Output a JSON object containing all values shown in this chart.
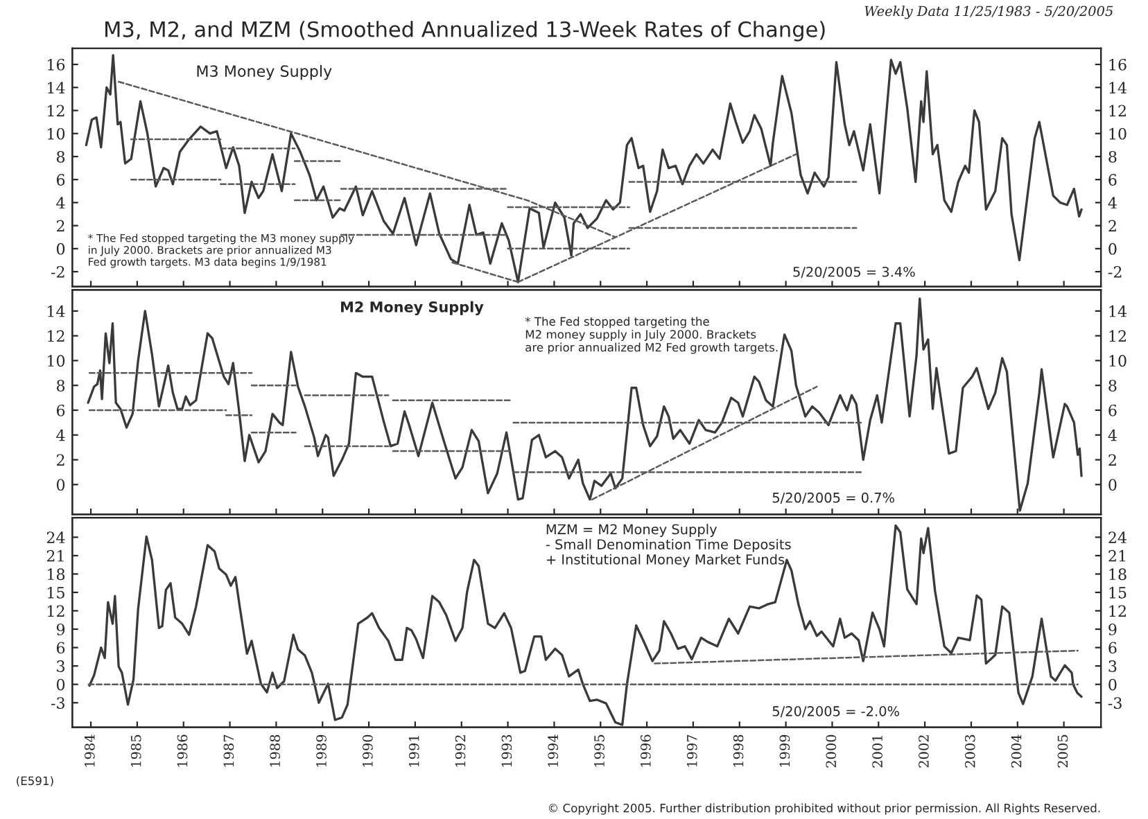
{
  "chart_data": [
    {
      "type": "line",
      "title": "M3, M2, and MZM (Smoothed Annualized 13-Week Rates of Change)",
      "subtitle": "Weekly Data 11/25/1983 - 5/20/2005",
      "annotations": [
        "M3 Money Supply",
        "* The Fed stopped targeting the M3 money supply\nin July 2000. Brackets are prior annualized M3\nFed growth targets. M3 data begins 1/9/1981",
        "5/20/2005 = 3.4%"
      ],
      "xlim": [
        1983.6,
        2005.8
      ],
      "xticks": [
        1984,
        1985,
        1986,
        1987,
        1988,
        1989,
        1990,
        1991,
        1992,
        1993,
        1994,
        1995,
        1996,
        1997,
        1998,
        1999,
        2000,
        2001,
        2002,
        2003,
        2004,
        2005
      ],
      "ylim": [
        -3.3,
        17.4
      ],
      "yticks": [
        -2,
        0,
        2,
        4,
        6,
        8,
        10,
        12,
        14,
        16
      ],
      "y2lim": [
        -3.3,
        17.4
      ],
      "y2ticks": [
        -2,
        0,
        2,
        4,
        6,
        8,
        10,
        12,
        14,
        16
      ],
      "tick_labels": "y",
      "series": [
        {
          "color": "#3a3a3a",
          "x": [
            1983.9,
            1984.02,
            1984.12,
            1984.22,
            1984.34,
            1984.42,
            1984.48,
            1984.58,
            1984.64,
            1984.74,
            1984.87,
            1985.07,
            1985.22,
            1985.4,
            1985.57,
            1985.67,
            1985.77,
            1985.92,
            1986.12,
            1986.37,
            1986.57,
            1986.72,
            1986.92,
            1987.07,
            1987.2,
            1987.32,
            1987.47,
            1987.62,
            1987.72,
            1987.92,
            1988.12,
            1988.32,
            1988.52,
            1988.72,
            1988.87,
            1989.02,
            1989.22,
            1989.37,
            1989.47,
            1989.72,
            1989.87,
            1990.07,
            1990.32,
            1990.52,
            1990.77,
            1991.02,
            1991.32,
            1991.52,
            1991.77,
            1991.92,
            1992.17,
            1992.32,
            1992.47,
            1992.62,
            1992.87,
            1993.02,
            1993.22,
            1993.47,
            1993.67,
            1993.77,
            1994.02,
            1994.22,
            1994.37,
            1994.42,
            1994.57,
            1994.72,
            1994.92,
            1995.12,
            1995.27,
            1995.42,
            1995.57,
            1995.67,
            1995.82,
            1995.92,
            1996.07,
            1996.22,
            1996.34,
            1996.47,
            1996.62,
            1996.77,
            1996.92,
            1997.07,
            1997.22,
            1997.42,
            1997.57,
            1997.8,
            1997.92,
            1998.07,
            1998.22,
            1998.32,
            1998.47,
            1998.67,
            1998.72,
            1998.92,
            1999.12,
            1999.32,
            1999.47,
            1999.62,
            1999.82,
            1999.92,
            2000.09,
            2000.27,
            2000.37,
            2000.47,
            2000.67,
            2000.82,
            2001.02,
            2001.27,
            2001.37,
            2001.47,
            2001.62,
            2001.8,
            2001.92,
            2001.97,
            2002.04,
            2002.17,
            2002.27,
            2002.42,
            2002.57,
            2002.72,
            2002.87,
            2002.95,
            2003.07,
            2003.17,
            2003.32,
            2003.52,
            2003.67,
            2003.77,
            2003.87,
            2004.04,
            2004.37,
            2004.47,
            2004.77,
            2004.92,
            2005.07,
            2005.22,
            2005.33,
            2005.38
          ],
          "values": [
            9.0,
            11.2,
            11.4,
            8.8,
            14.0,
            13.4,
            16.8,
            10.8,
            11.0,
            7.4,
            7.8,
            12.8,
            10.0,
            5.4,
            7.0,
            6.8,
            5.6,
            8.4,
            9.5,
            10.6,
            10.0,
            10.2,
            7.0,
            8.8,
            7.2,
            3.1,
            5.8,
            4.4,
            5.0,
            8.2,
            5.0,
            10.0,
            8.4,
            6.4,
            4.2,
            5.4,
            2.7,
            3.5,
            3.3,
            5.4,
            2.9,
            5.0,
            2.4,
            1.3,
            4.4,
            0.3,
            4.8,
            1.3,
            -0.9,
            -1.3,
            3.8,
            1.2,
            1.4,
            -1.3,
            2.2,
            0.7,
            -2.9,
            3.5,
            3.1,
            0.1,
            4.0,
            2.7,
            -0.6,
            2.2,
            3.0,
            1.8,
            2.6,
            4.2,
            3.4,
            4.0,
            9.0,
            9.6,
            7.0,
            7.2,
            3.2,
            5.0,
            8.6,
            7.0,
            7.2,
            5.6,
            7.2,
            8.2,
            7.4,
            8.6,
            7.8,
            12.6,
            11.0,
            9.2,
            10.2,
            11.6,
            10.4,
            7.2,
            9.2,
            15.0,
            11.8,
            6.4,
            4.8,
            6.6,
            5.4,
            6.2,
            16.2,
            10.8,
            9.0,
            10.2,
            6.8,
            10.8,
            4.8,
            16.4,
            15.2,
            16.2,
            12.2,
            5.8,
            12.8,
            11.0,
            15.4,
            8.2,
            9.0,
            4.2,
            3.2,
            5.8,
            7.2,
            6.6,
            12.0,
            11.0,
            3.4,
            5.0,
            9.6,
            9.0,
            3.0,
            -1.0,
            9.6,
            11.0,
            4.6,
            4.0,
            3.8,
            5.2,
            2.8,
            3.4
          ]
        },
        {
          "color": "#5a5a5a",
          "line_style": "dashed",
          "x": [
            1984.6,
            1993.42,
            1995.32
          ],
          "values": [
            14.5,
            4.2,
            1.0
          ]
        },
        {
          "color": "#5a5a5a",
          "line_style": "dashed",
          "x": [
            1991.8,
            1993.22
          ],
          "values": [
            -1.2,
            -2.9
          ]
        },
        {
          "color": "#5a5a5a",
          "line_style": "dashed",
          "x": [
            1993.22,
            1999.22
          ],
          "values": [
            -2.9,
            8.2
          ]
        },
        {
          "color": "#5a5a5a",
          "line_style": "dashed",
          "x": [
            1984.87,
            1986.8
          ],
          "values": [
            9.5,
            9.5
          ]
        },
        {
          "color": "#5a5a5a",
          "line_style": "dashed",
          "x": [
            1984.87,
            1986.8
          ],
          "values": [
            6.0,
            6.0
          ]
        },
        {
          "color": "#5a5a5a",
          "line_style": "dashed",
          "x": [
            1986.8,
            1988.4
          ],
          "values": [
            8.7,
            8.7
          ]
        },
        {
          "color": "#5a5a5a",
          "line_style": "dashed",
          "x": [
            1986.8,
            1988.4
          ],
          "values": [
            5.6,
            5.6
          ]
        },
        {
          "color": "#5a5a5a",
          "line_style": "dashed",
          "x": [
            1988.4,
            1989.4
          ],
          "values": [
            7.6,
            7.6
          ]
        },
        {
          "color": "#5a5a5a",
          "line_style": "dashed",
          "x": [
            1988.4,
            1989.4
          ],
          "values": [
            4.2,
            4.2
          ]
        },
        {
          "color": "#5a5a5a",
          "line_style": "dashed",
          "x": [
            1989.4,
            1993.0
          ],
          "values": [
            5.2,
            5.2
          ]
        },
        {
          "color": "#5a5a5a",
          "line_style": "dashed",
          "x": [
            1989.4,
            1993.0
          ],
          "values": [
            1.2,
            1.2
          ]
        },
        {
          "color": "#5a5a5a",
          "line_style": "dashed",
          "x": [
            1993.0,
            1995.62
          ],
          "values": [
            3.6,
            3.6
          ]
        },
        {
          "color": "#5a5a5a",
          "line_style": "dashed",
          "x": [
            1993.0,
            1995.62
          ],
          "values": [
            0.0,
            0.0
          ]
        },
        {
          "color": "#5a5a5a",
          "line_style": "dashed",
          "x": [
            1995.62,
            2000.52
          ],
          "values": [
            5.8,
            5.8
          ]
        },
        {
          "color": "#5a5a5a",
          "line_style": "dashed",
          "x": [
            1995.62,
            2000.52
          ],
          "values": [
            1.8,
            1.8
          ]
        }
      ]
    },
    {
      "type": "line",
      "annotations": [
        "M2 Money Supply",
        "* The Fed stopped targeting the\nM2 money supply in July 2000. Brackets\nare prior annualized M2 Fed growth targets.",
        "5/20/2005 = 0.7%"
      ],
      "xlim": [
        1983.6,
        2005.8
      ],
      "xticks": [
        1984,
        1985,
        1986,
        1987,
        1988,
        1989,
        1990,
        1991,
        1992,
        1993,
        1994,
        1995,
        1996,
        1997,
        1998,
        1999,
        2000,
        2001,
        2002,
        2003,
        2004,
        2005
      ],
      "ylim": [
        -2.4,
        15.7
      ],
      "yticks": [
        0,
        2,
        4,
        6,
        8,
        10,
        12,
        14
      ],
      "y2lim": [
        -2.4,
        15.7
      ],
      "y2ticks": [
        0,
        2,
        4,
        6,
        8,
        10,
        12,
        14
      ],
      "tick_labels": "y",
      "series": [
        {
          "color": "#3a3a3a",
          "x": [
            1983.94,
            1984.07,
            1984.14,
            1984.2,
            1984.24,
            1984.32,
            1984.4,
            1984.47,
            1984.54,
            1984.64,
            1984.77,
            1984.9,
            1985.02,
            1985.17,
            1985.32,
            1985.47,
            1985.67,
            1985.77,
            1985.87,
            1985.97,
            1986.05,
            1986.14,
            1986.27,
            1986.52,
            1986.62,
            1986.87,
            1986.97,
            1987.07,
            1987.2,
            1987.32,
            1987.42,
            1987.62,
            1987.77,
            1987.92,
            1988.07,
            1988.14,
            1988.32,
            1988.47,
            1988.62,
            1988.82,
            1988.9,
            1989.07,
            1989.12,
            1989.24,
            1989.42,
            1989.57,
            1989.72,
            1989.87,
            1990.07,
            1990.32,
            1990.47,
            1990.62,
            1990.77,
            1990.87,
            1991.07,
            1991.37,
            1991.62,
            1991.87,
            1992.02,
            1992.22,
            1992.37,
            1992.57,
            1992.77,
            1992.97,
            1993.22,
            1993.32,
            1993.52,
            1993.67,
            1993.82,
            1994.02,
            1994.17,
            1994.32,
            1994.52,
            1994.62,
            1994.77,
            1994.87,
            1995.02,
            1995.22,
            1995.32,
            1995.47,
            1995.67,
            1995.77,
            1995.92,
            1996.07,
            1996.22,
            1996.37,
            1996.47,
            1996.57,
            1996.72,
            1996.92,
            1997.12,
            1997.27,
            1997.47,
            1997.62,
            1997.82,
            1997.97,
            1998.07,
            1998.32,
            1998.42,
            1998.57,
            1998.72,
            1998.97,
            1999.12,
            1999.22,
            1999.42,
            1999.57,
            1999.72,
            1999.92,
            2000.17,
            2000.32,
            2000.42,
            2000.52,
            2000.67,
            2000.82,
            2000.97,
            2001.07,
            2001.37,
            2001.47,
            2001.67,
            2001.82,
            2001.89,
            2001.97,
            2002.07,
            2002.17,
            2002.25,
            2002.52,
            2002.67,
            2002.82,
            2003.02,
            2003.12,
            2003.37,
            2003.52,
            2003.67,
            2003.77,
            2004.05,
            2004.22,
            2004.47,
            2004.52,
            2004.77,
            2005.02,
            2005.07,
            2005.22,
            2005.3,
            2005.34,
            2005.38
          ],
          "values": [
            6.6,
            7.9,
            8.1,
            9.2,
            6.9,
            12.2,
            9.8,
            13.0,
            6.6,
            6.1,
            4.6,
            5.7,
            10.0,
            14.0,
            10.5,
            6.3,
            9.6,
            7.4,
            6.1,
            6.1,
            7.1,
            6.4,
            6.8,
            12.2,
            11.8,
            8.7,
            8.1,
            9.8,
            5.9,
            1.9,
            4.0,
            1.8,
            2.7,
            5.7,
            5.0,
            4.8,
            10.7,
            7.9,
            6.3,
            3.8,
            2.3,
            4.0,
            3.8,
            0.7,
            2.0,
            3.3,
            9.0,
            8.7,
            8.7,
            5.1,
            3.1,
            3.3,
            5.9,
            4.8,
            2.3,
            6.6,
            3.5,
            0.5,
            1.4,
            4.4,
            3.5,
            -0.7,
            0.9,
            4.2,
            -1.2,
            -1.1,
            3.6,
            4.0,
            2.2,
            2.7,
            2.2,
            0.5,
            2.0,
            0.1,
            -1.2,
            0.3,
            -0.1,
            0.9,
            -0.3,
            0.5,
            7.8,
            7.8,
            4.8,
            3.1,
            3.9,
            6.3,
            5.5,
            3.7,
            4.4,
            3.3,
            5.2,
            4.4,
            4.2,
            5.0,
            7.0,
            6.6,
            5.5,
            8.7,
            8.3,
            6.8,
            6.3,
            12.1,
            10.8,
            8.0,
            5.5,
            6.3,
            5.8,
            4.8,
            7.2,
            6.0,
            7.2,
            6.5,
            2.0,
            5.2,
            7.2,
            5.0,
            13.0,
            13.0,
            5.5,
            10.4,
            15.0,
            10.9,
            11.7,
            6.1,
            9.4,
            2.5,
            2.7,
            7.8,
            8.7,
            9.4,
            6.1,
            7.4,
            10.2,
            9.1,
            -2.1,
            0.1,
            7.4,
            9.3,
            2.2,
            6.5,
            6.3,
            5.0,
            2.4,
            2.9,
            0.7
          ]
        },
        {
          "color": "#5a5a5a",
          "line_style": "dashed",
          "x": [
            1983.97,
            1987.47
          ],
          "values": [
            9.0,
            9.0
          ]
        },
        {
          "color": "#5a5a5a",
          "line_style": "dashed",
          "x": [
            1983.97,
            1986.92
          ],
          "values": [
            6.0,
            6.0
          ]
        },
        {
          "color": "#5a5a5a",
          "line_style": "dashed",
          "x": [
            1986.92,
            1987.47
          ],
          "values": [
            5.6,
            5.6
          ]
        },
        {
          "color": "#5a5a5a",
          "line_style": "dashed",
          "x": [
            1987.47,
            1988.42
          ],
          "values": [
            8.0,
            8.0
          ]
        },
        {
          "color": "#5a5a5a",
          "line_style": "dashed",
          "x": [
            1987.47,
            1988.42
          ],
          "values": [
            4.2,
            4.2
          ]
        },
        {
          "color": "#5a5a5a",
          "line_style": "dashed",
          "x": [
            1988.62,
            1990.42
          ],
          "values": [
            7.2,
            7.2
          ]
        },
        {
          "color": "#5a5a5a",
          "line_style": "dashed",
          "x": [
            1988.62,
            1990.42
          ],
          "values": [
            3.1,
            3.1
          ]
        },
        {
          "color": "#5a5a5a",
          "line_style": "dashed",
          "x": [
            1990.52,
            1993.07
          ],
          "values": [
            6.8,
            6.8
          ]
        },
        {
          "color": "#5a5a5a",
          "line_style": "dashed",
          "x": [
            1990.52,
            1993.07
          ],
          "values": [
            2.7,
            2.7
          ]
        },
        {
          "color": "#5a5a5a",
          "line_style": "dashed",
          "x": [
            1993.12,
            2000.62
          ],
          "values": [
            5.0,
            5.0
          ]
        },
        {
          "color": "#5a5a5a",
          "line_style": "dashed",
          "x": [
            1993.12,
            2000.62
          ],
          "values": [
            1.0,
            1.0
          ]
        },
        {
          "color": "#5a5a5a",
          "line_style": "dashed",
          "x": [
            1994.82,
            1999.67
          ],
          "values": [
            -1.2,
            7.9
          ]
        }
      ]
    },
    {
      "type": "line",
      "annotations": [
        "MZM = M2 Money Supply\n- Small Denomination Time Deposits\n+ Institutional Money Market Funds",
        "5/20/2005 = -2.0%",
        "(E591)",
        "© Copyright 2005. Further distribution prohibited without prior permission. All Rights Reserved."
      ],
      "xlim": [
        1983.6,
        2005.8
      ],
      "xticks": [
        1984,
        1985,
        1986,
        1987,
        1988,
        1989,
        1990,
        1991,
        1992,
        1993,
        1994,
        1995,
        1996,
        1997,
        1998,
        1999,
        2000,
        2001,
        2002,
        2003,
        2004,
        2005
      ],
      "ylim": [
        -7.0,
        27.2
      ],
      "yticks": [
        -3,
        0,
        3,
        6,
        9,
        12,
        15,
        18,
        21,
        24
      ],
      "y2lim": [
        -7.0,
        27.2
      ],
      "y2ticks": [
        -3,
        0,
        3,
        6,
        9,
        12,
        15,
        18,
        21,
        24
      ],
      "series": [
        {
          "color": "#3a3a3a",
          "x": [
            1983.97,
            1984.07,
            1984.22,
            1984.3,
            1984.37,
            1984.47,
            1984.52,
            1984.6,
            1984.67,
            1984.8,
            1984.92,
            1985.02,
            1985.2,
            1985.32,
            1985.47,
            1985.54,
            1985.62,
            1985.72,
            1985.82,
            1985.97,
            1986.12,
            1986.27,
            1986.52,
            1986.67,
            1986.77,
            1986.92,
            1987.02,
            1987.12,
            1987.22,
            1987.37,
            1987.47,
            1987.67,
            1987.8,
            1987.92,
            1988.02,
            1988.17,
            1988.37,
            1988.47,
            1988.62,
            1988.77,
            1988.92,
            1989.12,
            1989.27,
            1989.42,
            1989.54,
            1989.77,
            1989.97,
            1990.07,
            1990.22,
            1990.42,
            1990.57,
            1990.72,
            1990.82,
            1990.92,
            1991.02,
            1991.17,
            1991.37,
            1991.52,
            1991.67,
            1991.87,
            1992.02,
            1992.12,
            1992.27,
            1992.37,
            1992.57,
            1992.72,
            1992.92,
            1993.07,
            1993.27,
            1993.37,
            1993.57,
            1993.72,
            1993.82,
            1994.02,
            1994.17,
            1994.32,
            1994.52,
            1994.62,
            1994.77,
            1994.92,
            1995.12,
            1995.32,
            1995.47,
            1995.57,
            1995.77,
            1995.92,
            1996.12,
            1996.27,
            1996.37,
            1996.52,
            1996.67,
            1996.82,
            1996.97,
            1997.17,
            1997.32,
            1997.52,
            1997.77,
            1997.97,
            1998.22,
            1998.42,
            1998.62,
            1998.77,
            1999.02,
            1999.12,
            1999.27,
            1999.42,
            1999.52,
            1999.67,
            1999.77,
            2000.02,
            2000.17,
            2000.27,
            2000.42,
            2000.57,
            2000.67,
            2000.87,
            2001.02,
            2001.12,
            2001.37,
            2001.47,
            2001.62,
            2001.82,
            2001.92,
            2001.97,
            2002.07,
            2002.22,
            2002.42,
            2002.57,
            2002.72,
            2002.97,
            2003.12,
            2003.22,
            2003.32,
            2003.52,
            2003.67,
            2003.82,
            2004.02,
            2004.12,
            2004.32,
            2004.52,
            2004.72,
            2004.82,
            2005.02,
            2005.17,
            2005.2,
            2005.29,
            2005.38
          ],
          "values": [
            -0.2,
            1.5,
            6.0,
            4.3,
            13.4,
            9.9,
            14.4,
            2.9,
            1.9,
            -3.3,
            0.8,
            12.3,
            24.1,
            20.3,
            9.2,
            9.5,
            15.4,
            16.5,
            10.9,
            9.9,
            8.1,
            12.7,
            22.7,
            21.7,
            18.9,
            17.9,
            16.1,
            17.5,
            12.3,
            5.0,
            7.1,
            0.1,
            -1.3,
            1.9,
            -0.6,
            0.5,
            8.1,
            5.7,
            4.7,
            1.9,
            -3.0,
            0.1,
            -5.8,
            -5.4,
            -3.3,
            9.9,
            10.9,
            11.6,
            9.2,
            7.1,
            4.0,
            4.0,
            9.2,
            8.8,
            7.4,
            4.3,
            14.4,
            13.4,
            11.3,
            7.1,
            9.2,
            15.1,
            20.3,
            19.3,
            9.9,
            9.2,
            11.6,
            9.2,
            1.9,
            2.2,
            7.8,
            7.8,
            4.0,
            5.8,
            4.8,
            1.3,
            2.4,
            0.0,
            -2.7,
            -2.5,
            -3.1,
            -6.2,
            -6.6,
            0.0,
            9.6,
            7.2,
            3.8,
            5.5,
            10.3,
            8.3,
            5.8,
            6.2,
            4.1,
            7.6,
            6.9,
            6.2,
            10.7,
            8.3,
            12.7,
            12.4,
            13.1,
            13.4,
            20.3,
            18.6,
            13.1,
            9.0,
            10.3,
            7.9,
            8.6,
            6.2,
            10.7,
            7.6,
            8.3,
            7.2,
            3.8,
            11.7,
            9.0,
            6.2,
            25.9,
            24.8,
            15.5,
            13.1,
            23.8,
            21.4,
            25.5,
            15.2,
            6.2,
            5.1,
            7.6,
            7.2,
            14.5,
            13.8,
            3.4,
            4.8,
            12.7,
            11.7,
            -1.4,
            -3.2,
            1.3,
            10.7,
            1.3,
            0.6,
            3.1,
            1.9,
            0.0,
            -1.4,
            -2.0
          ]
        },
        {
          "color": "#5a5a5a",
          "line_style": "dashed",
          "x": [
            1983.95,
            2005.3
          ],
          "values": [
            0.0,
            0.0
          ]
        },
        {
          "color": "#5a5a5a",
          "line_style": "dashed",
          "x": [
            1996.17,
            2005.3
          ],
          "values": [
            3.4,
            5.5
          ]
        }
      ]
    }
  ]
}
